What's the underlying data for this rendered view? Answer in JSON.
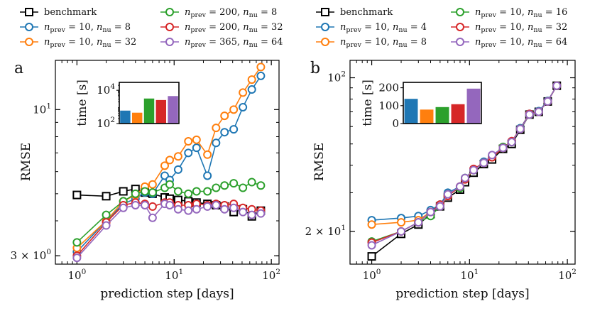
{
  "chart_data": [
    {
      "type": "line",
      "panel_label": "a",
      "xlabel": "prediction step [days]",
      "ylabel": "RMSE",
      "xscale": "log",
      "yscale": "log",
      "xlim": [
        0.6,
        120
      ],
      "ylim": [
        2.8,
        15
      ],
      "xticks": [
        {
          "v": 1,
          "base": "10",
          "exp": "0"
        },
        {
          "v": 10,
          "base": "10",
          "exp": "1"
        },
        {
          "v": 100,
          "base": "10",
          "exp": "2"
        }
      ],
      "yticks": [
        {
          "v": 3,
          "lead": "3 × ",
          "base": "10",
          "exp": "0"
        },
        {
          "v": 10,
          "lead": "",
          "base": "10",
          "exp": "1"
        }
      ],
      "x": [
        1,
        2,
        3,
        4,
        5,
        6,
        8,
        9,
        11,
        14,
        17,
        22,
        27,
        33,
        41,
        51,
        63,
        78
      ],
      "series": [
        {
          "name": "benchmark",
          "color": "#000000",
          "marker": "square",
          "values": [
            4.95,
            4.9,
            5.1,
            5.2,
            5.05,
            5.0,
            4.85,
            4.8,
            4.75,
            4.7,
            4.65,
            4.6,
            4.55,
            4.5,
            4.3,
            4.4,
            4.15,
            4.35
          ]
        },
        {
          "name": "n_prev = 10, n_nu = 8",
          "color": "#1f77b4",
          "marker": "circle",
          "values": [
            3.1,
            4.0,
            4.6,
            4.8,
            5.05,
            5.0,
            5.8,
            5.6,
            6.1,
            7.0,
            7.3,
            5.8,
            7.6,
            8.3,
            8.5,
            10.2,
            11.8,
            13.2
          ]
        },
        {
          "name": "n_prev = 10, n_nu = 32",
          "color": "#ff7f0e",
          "marker": "circle",
          "values": [
            3.2,
            4.0,
            4.7,
            4.95,
            5.3,
            5.4,
            6.3,
            6.6,
            6.8,
            7.7,
            7.8,
            6.9,
            8.6,
            9.5,
            10.0,
            11.5,
            12.8,
            14.2
          ]
        },
        {
          "name": "n_prev = 200, n_nu = 8",
          "color": "#2ca02c",
          "marker": "circle",
          "values": [
            3.35,
            4.2,
            4.7,
            5.0,
            5.1,
            5.05,
            5.25,
            5.4,
            5.1,
            5.0,
            5.1,
            5.1,
            5.25,
            5.35,
            5.45,
            5.25,
            5.5,
            5.35
          ]
        },
        {
          "name": "n_prev = 200, n_nu = 32",
          "color": "#d62728",
          "marker": "circle",
          "values": [
            3.0,
            3.95,
            4.55,
            4.65,
            4.6,
            4.5,
            4.65,
            4.65,
            4.55,
            4.55,
            4.6,
            4.55,
            4.6,
            4.55,
            4.6,
            4.45,
            4.4,
            4.35
          ]
        },
        {
          "name": "n_prev = 365, n_nu = 64",
          "color": "#9467bd",
          "marker": "circle",
          "values": [
            2.95,
            3.85,
            4.45,
            4.55,
            4.55,
            4.1,
            4.6,
            4.55,
            4.4,
            4.35,
            4.4,
            4.5,
            4.55,
            4.4,
            4.45,
            4.3,
            4.2,
            4.25
          ]
        }
      ],
      "legend": {
        "placement": "above",
        "entries": [
          {
            "label": "benchmark",
            "color": "#000000",
            "marker": "square"
          },
          {
            "n1": "10",
            "n2": "8",
            "color": "#1f77b4",
            "marker": "circle"
          },
          {
            "n1": "10",
            "n2": "32",
            "color": "#ff7f0e",
            "marker": "circle"
          },
          {
            "n1": "200",
            "n2": "8",
            "color": "#2ca02c",
            "marker": "circle"
          },
          {
            "n1": "200",
            "n2": "32",
            "color": "#d62728",
            "marker": "circle"
          },
          {
            "n1": "365",
            "n2": "64",
            "color": "#9467bd",
            "marker": "circle"
          }
        ]
      },
      "inset": {
        "type": "bar",
        "ylabel": "time [s]",
        "yscale": "log",
        "ylim": [
          100,
          30000
        ],
        "yticks": [
          {
            "v": 100,
            "base": "10",
            "exp": "2"
          },
          {
            "v": 10000,
            "base": "10",
            "exp": "4"
          }
        ],
        "values": [
          600,
          450,
          3200,
          2600,
          4500
        ],
        "colors": [
          "#1f77b4",
          "#ff7f0e",
          "#2ca02c",
          "#d62728",
          "#9467bd"
        ]
      }
    },
    {
      "type": "line",
      "panel_label": "b",
      "xlabel": "prediction step [days]",
      "ylabel": "RMSE",
      "xscale": "log",
      "yscale": "log",
      "xlim": [
        0.6,
        120
      ],
      "ylim": [
        14.2,
        120
      ],
      "xticks": [
        {
          "v": 1,
          "base": "10",
          "exp": "0"
        },
        {
          "v": 10,
          "base": "10",
          "exp": "1"
        },
        {
          "v": 100,
          "base": "10",
          "exp": "2"
        }
      ],
      "yticks": [
        {
          "v": 20,
          "lead": "2 × ",
          "base": "10",
          "exp": "1"
        },
        {
          "v": 100,
          "lead": "",
          "base": "10",
          "exp": "2"
        }
      ],
      "x": [
        1,
        2,
        3,
        4,
        5,
        6,
        8,
        9,
        11,
        14,
        17,
        22,
        27,
        33,
        41,
        51,
        63,
        78
      ],
      "series": [
        {
          "name": "benchmark",
          "color": "#000000",
          "marker": "square",
          "values": [
            15.4,
            19.5,
            21.5,
            24.0,
            26.0,
            28.5,
            31.0,
            33.5,
            37.0,
            40.5,
            42.5,
            47.5,
            50.0,
            58.0,
            68.0,
            70.0,
            78.0,
            92.0
          ]
        },
        {
          "name": "n_prev = 10, n_nu = 4",
          "color": "#1f77b4",
          "marker": "circle",
          "values": [
            22.5,
            23.0,
            23.5,
            25.0,
            26.5,
            30.0,
            32.0,
            35.0,
            38.0,
            41.5,
            44.0,
            48.0,
            51.0,
            59.0,
            68.5,
            70.5,
            78.5,
            92.0
          ]
        },
        {
          "name": "n_prev = 10, n_nu = 8",
          "color": "#ff7f0e",
          "marker": "circle",
          "values": [
            21.5,
            22.0,
            22.5,
            24.5,
            26.0,
            29.0,
            32.0,
            34.5,
            38.0,
            41.0,
            43.5,
            48.0,
            51.0,
            58.5,
            68.0,
            70.0,
            78.0,
            92.0
          ]
        },
        {
          "name": "n_prev = 10, n_nu = 16",
          "color": "#2ca02c",
          "marker": "circle",
          "values": [
            18.0,
            20.0,
            22.0,
            23.5,
            26.0,
            29.5,
            31.5,
            35.0,
            38.0,
            41.0,
            44.0,
            48.5,
            51.0,
            58.5,
            68.0,
            70.0,
            78.0,
            92.0
          ]
        },
        {
          "name": "n_prev = 10, n_nu = 32",
          "color": "#d62728",
          "marker": "circle",
          "values": [
            17.8,
            20.0,
            22.0,
            24.5,
            26.5,
            29.0,
            32.0,
            34.5,
            38.5,
            41.0,
            43.5,
            48.0,
            51.5,
            58.5,
            68.5,
            70.0,
            78.0,
            92.0
          ]
        },
        {
          "name": "n_prev = 10, n_nu = 64",
          "color": "#9467bd",
          "marker": "circle",
          "values": [
            17.3,
            20.0,
            22.0,
            24.5,
            26.0,
            29.5,
            32.0,
            35.0,
            38.0,
            41.0,
            44.5,
            48.0,
            51.0,
            58.5,
            68.0,
            70.0,
            78.0,
            92.0
          ]
        }
      ],
      "legend": {
        "placement": "above",
        "entries": [
          {
            "label": "benchmark",
            "color": "#000000",
            "marker": "square"
          },
          {
            "n1": "10",
            "n2": "4",
            "color": "#1f77b4",
            "marker": "circle"
          },
          {
            "n1": "10",
            "n2": "8",
            "color": "#ff7f0e",
            "marker": "circle"
          },
          {
            "n1": "10",
            "n2": "16",
            "color": "#2ca02c",
            "marker": "circle"
          },
          {
            "n1": "10",
            "n2": "32",
            "color": "#d62728",
            "marker": "circle"
          },
          {
            "n1": "10",
            "n2": "64",
            "color": "#9467bd",
            "marker": "circle"
          }
        ]
      },
      "inset": {
        "type": "bar",
        "ylabel": "time [s]",
        "yscale": "linear",
        "ylim": [
          0,
          230
        ],
        "yticks": [
          {
            "v": 0,
            "label": "0"
          },
          {
            "v": 100,
            "label": "100"
          },
          {
            "v": 200,
            "label": "200"
          }
        ],
        "values": [
          138,
          78,
          92,
          108,
          195
        ],
        "colors": [
          "#1f77b4",
          "#ff7f0e",
          "#2ca02c",
          "#d62728",
          "#9467bd"
        ]
      }
    }
  ]
}
